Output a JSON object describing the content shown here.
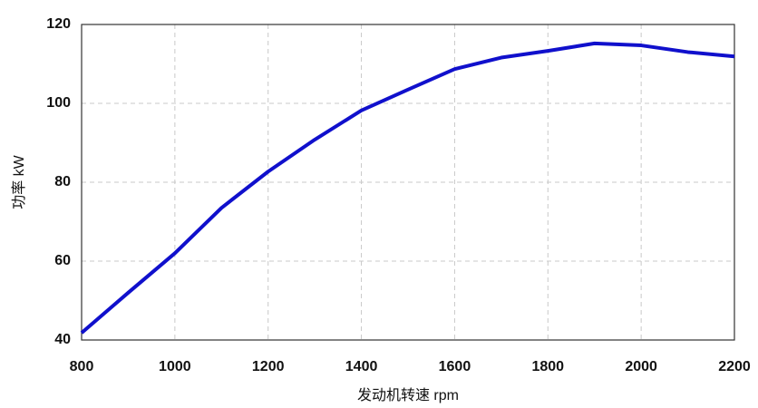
{
  "chart_data": {
    "type": "line",
    "x_label": "发动机转速 rpm",
    "y_label": "功率 kW",
    "x": [
      800,
      900,
      1000,
      1100,
      1200,
      1300,
      1400,
      1500,
      1600,
      1700,
      1800,
      1900,
      2000,
      2100,
      2200
    ],
    "series": [
      {
        "color": "#1010cc",
        "values": [
          41.8,
          52,
          62,
          73.5,
          82.7,
          90.8,
          98.2,
          103.5,
          108.7,
          111.6,
          113.3,
          115.2,
          114.7,
          113,
          111.9
        ]
      }
    ],
    "xlim": [
      800,
      2200
    ],
    "xticks": [
      800,
      1000,
      1200,
      1400,
      1600,
      1800,
      2000,
      2200
    ],
    "ylim": [
      40,
      120
    ],
    "yticks": [
      40,
      60,
      80,
      100,
      120
    ],
    "grid": true
  }
}
